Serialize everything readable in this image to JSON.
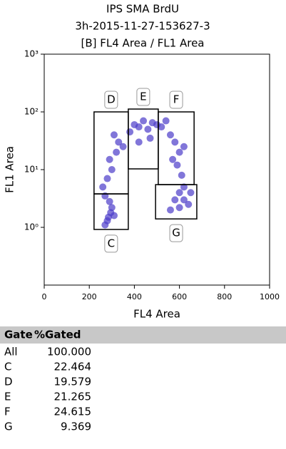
{
  "chart_data": {
    "type": "scatter",
    "title_lines": [
      "IPS SMA BrdU",
      "3h-2015-11-27-153627-3",
      "[B] FL4 Area / FL1 Area"
    ],
    "x_label": "FL4 Area",
    "y_label": "FL1 Area",
    "xlim": [
      0,
      1000
    ],
    "xticks": [
      0,
      200,
      400,
      600,
      800,
      1000
    ],
    "ylim": [
      0.1,
      1000
    ],
    "y_scale": "log",
    "yticks": [
      {
        "value": 1,
        "label": "10⁰"
      },
      {
        "value": 10,
        "label": "10¹"
      },
      {
        "value": 100,
        "label": "10²"
      },
      {
        "value": 1000,
        "label": "10³"
      }
    ],
    "color": "#4b3cc9",
    "x": [
      285,
      295,
      300,
      280,
      310,
      290,
      270,
      270,
      260,
      280,
      300,
      290,
      320,
      330,
      310,
      350,
      380,
      400,
      420,
      440,
      460,
      480,
      500,
      520,
      540,
      420,
      470,
      560,
      580,
      600,
      590,
      610,
      620,
      600,
      580,
      620,
      640,
      560,
      600,
      650,
      570,
      620
    ],
    "y": [
      1.5,
      1.8,
      2.2,
      1.3,
      1.6,
      2.8,
      1.1,
      3.5,
      5,
      7,
      10,
      15,
      20,
      30,
      40,
      25,
      45,
      60,
      55,
      70,
      50,
      65,
      60,
      55,
      70,
      30,
      35,
      40,
      30,
      20,
      12,
      8,
      5,
      4,
      3,
      3,
      2.5,
      2,
      2.2,
      4,
      15,
      25
    ],
    "gates": [
      {
        "label": "D",
        "xlim": [
          221,
          373
        ],
        "ylim": [
          3.8,
          100
        ],
        "label_side": "top"
      },
      {
        "label": "E",
        "xlim": [
          373,
          506
        ],
        "ylim": [
          10.3,
          112
        ],
        "label_side": "top"
      },
      {
        "label": "F",
        "xlim": [
          506,
          665
        ],
        "ylim": [
          5.5,
          100
        ],
        "label_side": "top"
      },
      {
        "label": "C",
        "xlim": [
          221,
          373
        ],
        "ylim": [
          0.92,
          3.8
        ],
        "label_side": "bottom"
      },
      {
        "label": "G",
        "xlim": [
          494,
          677
        ],
        "ylim": [
          1.4,
          5.5
        ],
        "label_side": "bottom"
      }
    ]
  },
  "table": {
    "header": [
      "Gate",
      "%Gated"
    ],
    "rows": [
      [
        "All",
        "100.000"
      ],
      [
        "C",
        "22.464"
      ],
      [
        "D",
        "19.579"
      ],
      [
        "E",
        "21.265"
      ],
      [
        "F",
        "24.615"
      ],
      [
        "G",
        "9.369"
      ]
    ]
  }
}
